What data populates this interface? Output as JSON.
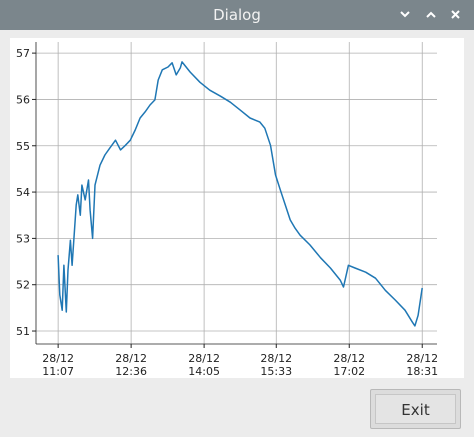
{
  "window": {
    "title": "Dialog"
  },
  "button": "Exit",
  "chart_data": {
    "type": "line",
    "x": [
      "28/12 11:07",
      "28/12 11:09",
      "28/12 11:12",
      "28/12 11:14",
      "28/12 11:17",
      "28/12 11:19",
      "28/12 11:22",
      "28/12 11:24",
      "28/12 11:27",
      "28/12 11:29",
      "28/12 11:31",
      "28/12 11:34",
      "28/12 11:36",
      "28/12 11:40",
      "28/12 11:44",
      "28/12 11:46",
      "28/12 11:49",
      "28/12 11:52",
      "28/12 11:58",
      "28/12 12:04",
      "28/12 12:10",
      "28/12 12:17",
      "28/12 12:23",
      "28/12 12:29",
      "28/12 12:35",
      "28/12 12:41",
      "28/12 12:47",
      "28/12 12:53",
      "28/12 12:59",
      "28/12 13:05",
      "28/12 13:09",
      "28/12 13:14",
      "28/12 13:21",
      "28/12 13:26",
      "28/12 13:31",
      "28/12 13:36",
      "28/12 13:38",
      "28/12 13:48",
      "28/12 14:00",
      "28/12 14:12",
      "28/12 14:25",
      "28/12 14:37",
      "28/12 14:49",
      "28/12 15:01",
      "28/12 15:13",
      "28/12 15:19",
      "28/12 15:26",
      "28/12 15:32",
      "28/12 15:38",
      "28/12 15:44",
      "28/12 15:50",
      "28/12 15:56",
      "28/12 16:02",
      "28/12 16:14",
      "28/12 16:27",
      "28/12 16:39",
      "28/12 16:51",
      "28/12 16:55",
      "28/12 17:01",
      "28/12 17:09",
      "28/12 17:22",
      "28/12 17:34",
      "28/12 17:46",
      "28/12 17:58",
      "28/12 18:10",
      "28/12 18:19",
      "28/12 18:22",
      "28/12 18:26",
      "28/12 18:31"
    ],
    "series": [
      {
        "color": "#1f77b4",
        "values": [
          52.64,
          51.78,
          51.45,
          52.42,
          51.41,
          52.32,
          52.96,
          52.42,
          53.18,
          53.72,
          53.94,
          53.5,
          54.15,
          53.83,
          54.26,
          53.61,
          53.0,
          54.15,
          54.58,
          54.8,
          54.95,
          55.12,
          54.91,
          55.01,
          55.12,
          55.34,
          55.6,
          55.73,
          55.88,
          55.99,
          56.42,
          56.64,
          56.7,
          56.79,
          56.53,
          56.68,
          56.81,
          56.59,
          56.37,
          56.2,
          56.07,
          55.94,
          55.77,
          55.6,
          55.51,
          55.38,
          55.01,
          54.37,
          54.04,
          53.72,
          53.4,
          53.22,
          53.07,
          52.86,
          52.58,
          52.36,
          52.1,
          51.95,
          52.42,
          52.36,
          52.27,
          52.14,
          51.88,
          51.67,
          51.45,
          51.19,
          51.11,
          51.34,
          51.93
        ]
      }
    ],
    "xlim": [
      "28/12 10:40",
      "28/12 18:49"
    ],
    "xticks": [
      {
        "value": "28/12 11:07",
        "label": "28/12\n11:07"
      },
      {
        "value": "28/12 12:36",
        "label": "28/12\n12:36"
      },
      {
        "value": "28/12 14:05",
        "label": "28/12\n14:05"
      },
      {
        "value": "28/12 15:33",
        "label": "28/12\n15:33"
      },
      {
        "value": "28/12 17:02",
        "label": "28/12\n17:02"
      },
      {
        "value": "28/12 18:31",
        "label": "28/12\n18:31"
      }
    ],
    "ylim": [
      50.72,
      57.24
    ],
    "yticks": [
      51,
      52,
      53,
      54,
      55,
      56,
      57
    ],
    "grid": true
  }
}
